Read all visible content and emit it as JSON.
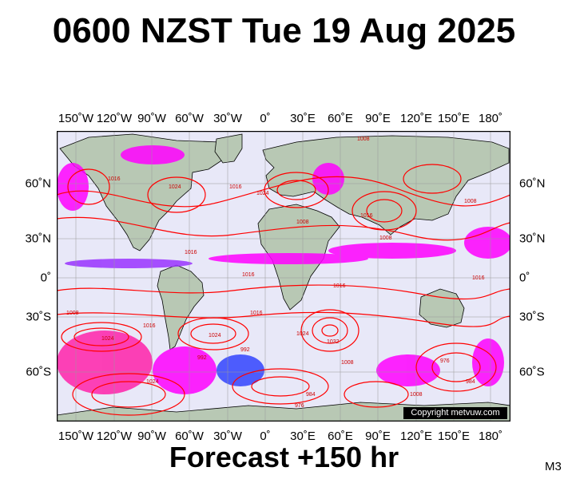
{
  "header": {
    "title": "0600 NZST Tue 19 Aug 2025"
  },
  "footer": {
    "forecast": "Forecast +150 hr",
    "model_code": "M3",
    "copyright": "Copyright metvuw.com"
  },
  "map": {
    "longitude_labels": [
      "150˚W",
      "120˚W",
      "90˚W",
      "60˚W",
      "30˚W",
      "0˚",
      "30˚E",
      "60˚E",
      "90˚E",
      "120˚E",
      "150˚E",
      "180˚"
    ],
    "latitude_labels": [
      "60˚N",
      "30˚N",
      "0˚",
      "30˚S",
      "60˚S"
    ],
    "isobar_labels": [
      "1016",
      "1024",
      "1016",
      "1016",
      "1016",
      "1024",
      "1008",
      "1008",
      "1016",
      "1008",
      "1016",
      "1024",
      "1008",
      "1016",
      "1024",
      "1016",
      "1032",
      "1024",
      "1008",
      "992",
      "984",
      "976",
      "1008",
      "976",
      "984",
      "1008",
      "1016",
      "1024",
      "992"
    ],
    "colors": {
      "ocean": "#e8e8f8",
      "land": "#b8c8b4",
      "isobar": "#ff0000",
      "rain_magenta": "#ff00ff",
      "rain_purple": "#9933ff",
      "rain_blue": "#3344ff",
      "coastline": "#000000"
    }
  }
}
